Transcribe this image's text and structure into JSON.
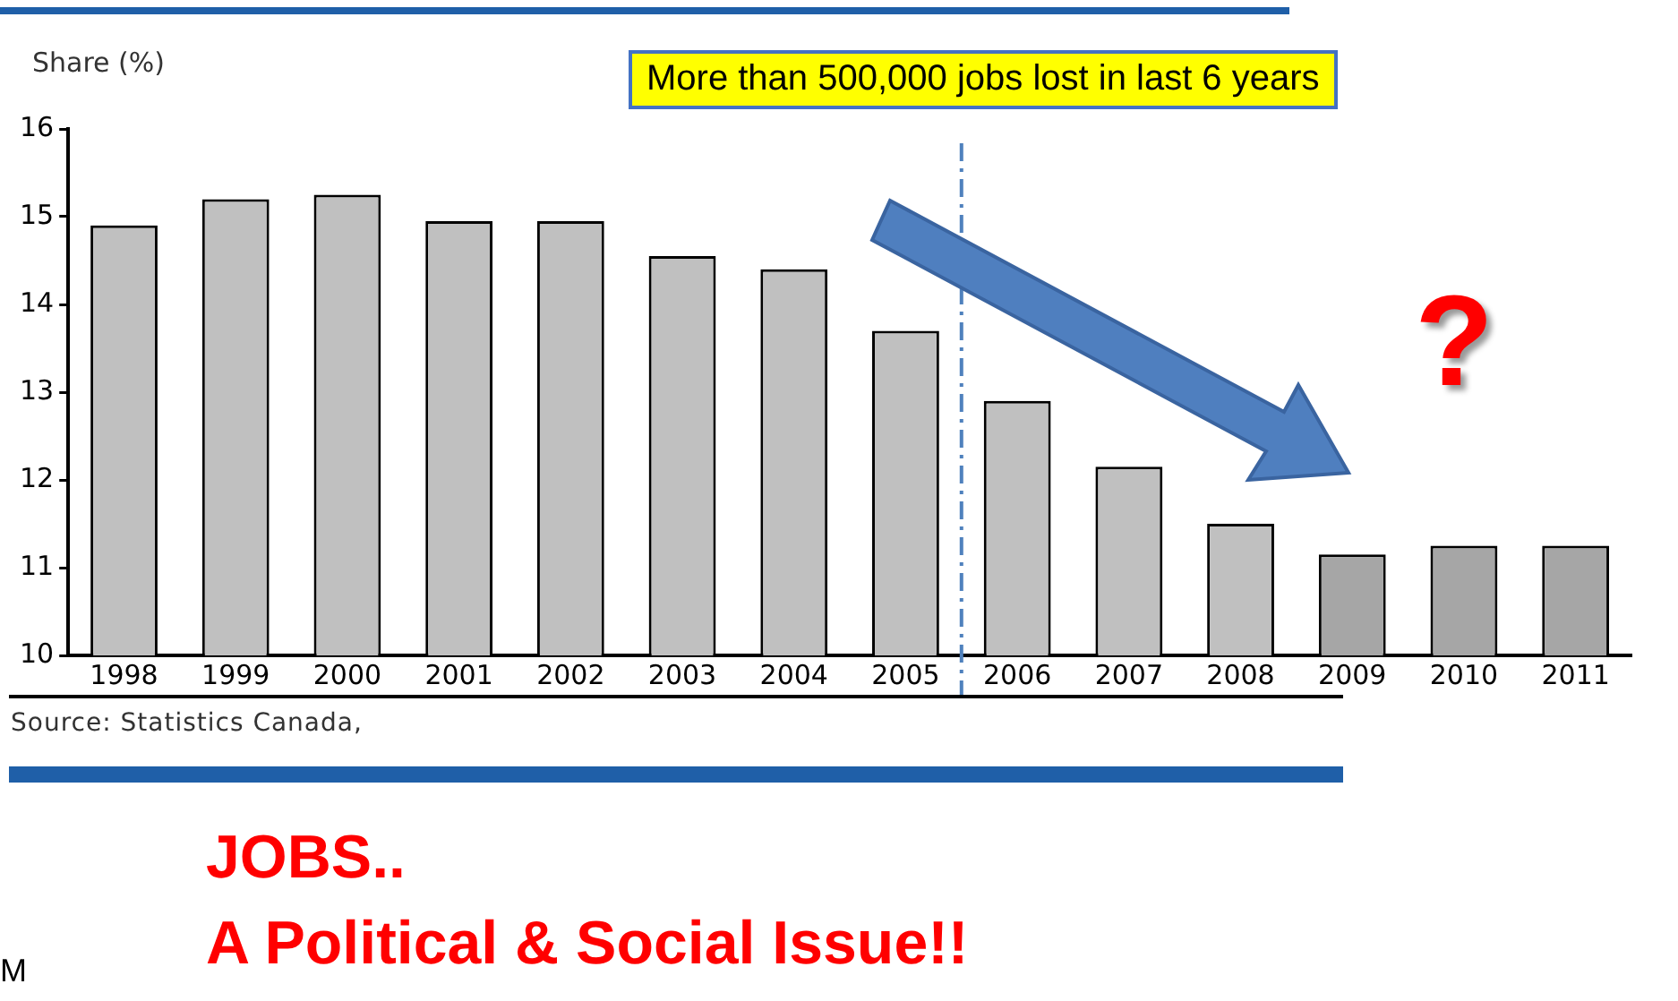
{
  "chart_data": {
    "type": "bar",
    "ylabel": "Share (%)",
    "x": [
      1998,
      1999,
      2000,
      2001,
      2002,
      2003,
      2004,
      2005,
      2006,
      2007,
      2008,
      2009,
      2010,
      2011
    ],
    "values": [
      14.9,
      15.2,
      15.25,
      14.95,
      14.95,
      14.55,
      14.4,
      13.7,
      12.9,
      12.15,
      11.5,
      11.15,
      11.25,
      11.25
    ],
    "colors": [
      "#c0c0c0",
      "#c0c0c0",
      "#c0c0c0",
      "#c0c0c0",
      "#c0c0c0",
      "#c0c0c0",
      "#c0c0c0",
      "#c0c0c0",
      "#c0c0c0",
      "#c0c0c0",
      "#c0c0c0",
      "#a6a6a6",
      "#a6a6a6",
      "#a6a6a6"
    ],
    "xlim": [
      1997.5,
      2011.5
    ],
    "xticks": [
      1998,
      1999,
      2000,
      2001,
      2002,
      2003,
      2004,
      2005,
      2006,
      2007,
      2008,
      2009,
      2010,
      2011
    ],
    "ylim": [
      10,
      16
    ],
    "yticks": [
      10,
      11,
      12,
      13,
      14,
      15,
      16
    ],
    "grid": false,
    "legend": false,
    "ref_lines": [
      {
        "axis": "x",
        "value": 2005.5,
        "color": "#4f81bd",
        "line_style": "dashed"
      }
    ],
    "annotations": [
      "More than 500,000 jobs lost in last 6 years",
      "?",
      "Source: Statistics Canada,",
      "JOBS..",
      "A Political & Social Issue!!",
      "M"
    ]
  }
}
